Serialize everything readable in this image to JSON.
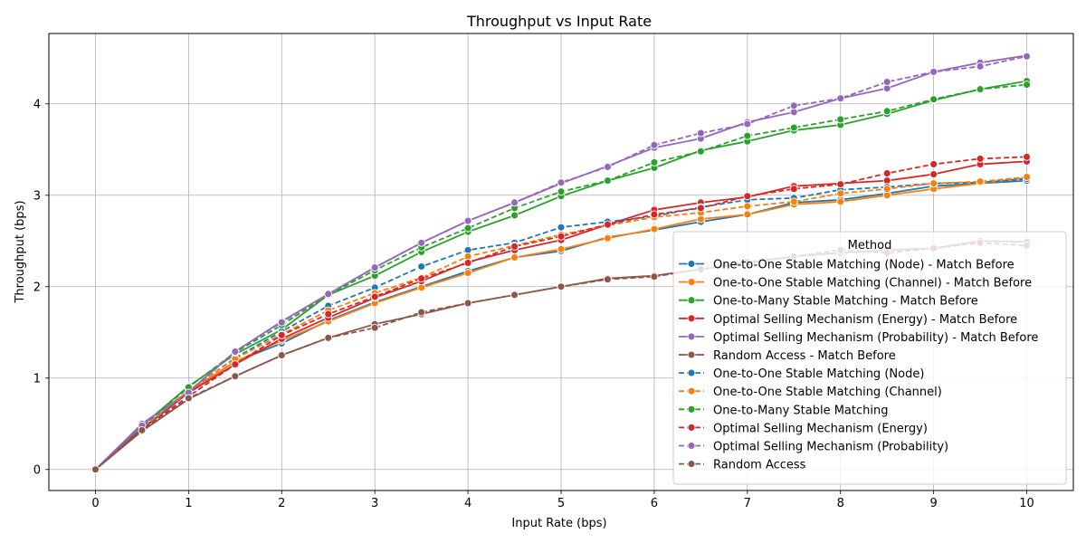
{
  "chart_data": {
    "type": "line",
    "title": "Throughput vs Input Rate",
    "xlabel": "Input Rate (bps)",
    "ylabel": "Throughput (bps)",
    "xlim": [
      -0.5,
      10.5
    ],
    "ylim": [
      -0.23,
      4.77
    ],
    "xticks": [
      0,
      1,
      2,
      3,
      4,
      5,
      6,
      7,
      8,
      9,
      10
    ],
    "yticks": [
      0,
      1,
      2,
      3,
      4
    ],
    "grid": true,
    "legend_title": "Method",
    "legend_position": "lower-right",
    "x": [
      0,
      0.5,
      1,
      1.5,
      2,
      2.5,
      3,
      3.5,
      4,
      4.5,
      5,
      5.5,
      6,
      6.5,
      7,
      7.5,
      8,
      8.5,
      9,
      9.5,
      10
    ],
    "series": [
      {
        "name": "One-to-One Stable Matching (Node) - Match Before",
        "color": "#1f77b4",
        "dash": false,
        "values": [
          0,
          0.45,
          0.85,
          1.18,
          1.38,
          1.63,
          1.83,
          2.0,
          2.17,
          2.32,
          2.39,
          2.54,
          2.62,
          2.71,
          2.79,
          2.92,
          2.95,
          3.02,
          3.1,
          3.13,
          3.16
        ]
      },
      {
        "name": "One-to-One Stable Matching (Channel) - Match Before",
        "color": "#ff7f0e",
        "dash": false,
        "values": [
          0,
          0.44,
          0.85,
          1.18,
          1.41,
          1.62,
          1.82,
          1.99,
          2.15,
          2.32,
          2.41,
          2.53,
          2.63,
          2.74,
          2.79,
          2.9,
          2.93,
          3.0,
          3.07,
          3.13,
          3.19
        ]
      },
      {
        "name": "One-to-Many Stable Matching - Match Before",
        "color": "#2ca02c",
        "dash": false,
        "values": [
          0,
          0.48,
          0.91,
          1.26,
          1.53,
          1.91,
          2.12,
          2.38,
          2.6,
          2.78,
          2.99,
          3.16,
          3.3,
          3.49,
          3.59,
          3.71,
          3.77,
          3.89,
          4.04,
          4.16,
          4.25
        ]
      },
      {
        "name": "Optimal Selling Mechanism (Energy) - Match Before",
        "color": "#d62728",
        "dash": false,
        "values": [
          0,
          0.44,
          0.84,
          1.15,
          1.43,
          1.66,
          1.88,
          2.06,
          2.27,
          2.4,
          2.51,
          2.68,
          2.84,
          2.92,
          2.98,
          3.1,
          3.13,
          3.16,
          3.23,
          3.34,
          3.37
        ]
      },
      {
        "name": "Optimal Selling Mechanism (Probability) - Match Before",
        "color": "#9467bd",
        "dash": false,
        "values": [
          0,
          0.5,
          0.85,
          1.29,
          1.62,
          1.92,
          2.21,
          2.48,
          2.72,
          2.92,
          3.13,
          3.32,
          3.52,
          3.62,
          3.8,
          3.91,
          4.06,
          4.17,
          4.35,
          4.45,
          4.53
        ]
      },
      {
        "name": "Random Access - Match Before",
        "color": "#8c564b",
        "dash": false,
        "values": [
          0,
          0.42,
          0.77,
          1.02,
          1.25,
          1.44,
          1.59,
          1.7,
          1.82,
          1.91,
          2.0,
          2.09,
          2.12,
          2.19,
          2.26,
          2.33,
          2.37,
          2.4,
          2.42,
          2.5,
          2.49
        ]
      },
      {
        "name": "One-to-One Stable Matching (Node)",
        "color": "#1f77b4",
        "dash": true,
        "values": [
          0,
          0.44,
          0.86,
          1.22,
          1.51,
          1.79,
          1.99,
          2.22,
          2.4,
          2.48,
          2.65,
          2.71,
          2.77,
          2.87,
          2.95,
          2.97,
          3.06,
          3.09,
          3.13,
          3.14,
          3.18
        ]
      },
      {
        "name": "One-to-One Stable Matching (Channel)",
        "color": "#ff7f0e",
        "dash": true,
        "values": [
          0,
          0.44,
          0.87,
          1.21,
          1.48,
          1.74,
          1.93,
          2.1,
          2.33,
          2.45,
          2.57,
          2.67,
          2.76,
          2.81,
          2.88,
          2.93,
          3.02,
          3.07,
          3.13,
          3.15,
          3.2
        ]
      },
      {
        "name": "One-to-Many Stable Matching",
        "color": "#2ca02c",
        "dash": true,
        "values": [
          0,
          0.47,
          0.9,
          1.28,
          1.58,
          1.91,
          2.18,
          2.43,
          2.64,
          2.86,
          3.04,
          3.16,
          3.36,
          3.48,
          3.65,
          3.74,
          3.83,
          3.92,
          4.05,
          4.16,
          4.21
        ]
      },
      {
        "name": "Optimal Selling Mechanism (Energy)",
        "color": "#d62728",
        "dash": true,
        "values": [
          0,
          0.44,
          0.8,
          1.15,
          1.47,
          1.7,
          1.89,
          2.09,
          2.26,
          2.44,
          2.55,
          2.68,
          2.79,
          2.86,
          2.99,
          3.07,
          3.12,
          3.24,
          3.34,
          3.4,
          3.42
        ]
      },
      {
        "name": "Optimal Selling Mechanism (Probability)",
        "color": "#9467bd",
        "dash": true,
        "values": [
          0,
          0.48,
          0.84,
          1.29,
          1.61,
          1.92,
          2.21,
          2.48,
          2.72,
          2.92,
          3.14,
          3.31,
          3.55,
          3.68,
          3.78,
          3.98,
          4.06,
          4.24,
          4.35,
          4.41,
          4.52
        ]
      },
      {
        "name": "Random Access",
        "color": "#8c564b",
        "dash": true,
        "values": [
          0,
          0.43,
          0.78,
          1.02,
          1.25,
          1.44,
          1.55,
          1.72,
          1.82,
          1.91,
          2.0,
          2.08,
          2.11,
          2.19,
          2.27,
          2.33,
          2.4,
          2.37,
          2.42,
          2.48,
          2.45
        ]
      }
    ]
  }
}
